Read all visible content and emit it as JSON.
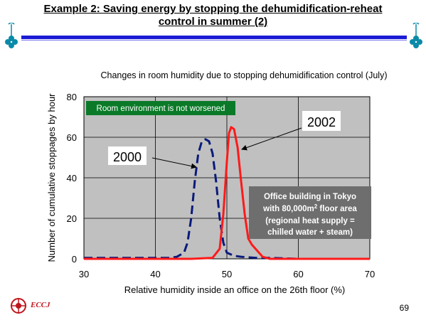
{
  "slide": {
    "title_line1": "Example 2: Saving energy by stopping the dehumidification-reheat",
    "title_line2": "control in summer (2)",
    "page_number": "69",
    "logo_text": "ECCJ",
    "accent_color": "#1b1bd6"
  },
  "chart_data": {
    "type": "line",
    "title": "Changes in room humidity due to stopping dehumidification control (July)",
    "xlabel": "Relative humidity inside an office on the 26th floor (%)",
    "ylabel": "Number of cumulative stoppages by hour",
    "xlim": [
      30,
      70
    ],
    "ylim": [
      0,
      80
    ],
    "xticks": [
      "30",
      "40",
      "50",
      "60",
      "70"
    ],
    "yticks": [
      "0",
      "20",
      "40",
      "60",
      "80"
    ],
    "grid": true,
    "plot_background": "#c0c0c0",
    "series": [
      {
        "name": "2000",
        "color": "#0a1a7a",
        "dash": true,
        "x": [
          30,
          40,
          42,
          43,
          44,
          44.5,
          45,
          45.5,
          46,
          46.5,
          47,
          47.5,
          48,
          48.5,
          49,
          49.5,
          50,
          51,
          52,
          54,
          56,
          60,
          70
        ],
        "y": [
          0.5,
          0.5,
          0.5,
          1,
          3,
          8,
          20,
          38,
          52,
          58,
          59,
          58,
          52,
          38,
          20,
          8,
          3,
          1.5,
          1,
          0.5,
          0.5,
          0,
          0
        ]
      },
      {
        "name": "2002",
        "color": "#ff1a1a",
        "dash": false,
        "x": [
          30,
          40,
          45,
          48,
          49,
          49.5,
          50,
          50.3,
          50.6,
          51,
          51.5,
          52,
          52.5,
          53,
          53.5,
          54,
          54.5,
          55,
          56,
          60,
          70
        ],
        "y": [
          0,
          0,
          0,
          0.5,
          5,
          22,
          48,
          62,
          65,
          64,
          55,
          38,
          22,
          10,
          7,
          5,
          3,
          1,
          0,
          0,
          0
        ]
      }
    ],
    "annotations": {
      "green_box": "Room environment is not worsened",
      "label_2000": "2000",
      "label_2002": "2002",
      "info_line1": "Office building in Tokyo",
      "info_line2_prefix": "with 80,000m",
      "info_line2_sup": "2",
      "info_line2_suffix": " floor area",
      "info_line3": "(regional heat supply =",
      "info_line4": "chilled water + steam)"
    }
  }
}
